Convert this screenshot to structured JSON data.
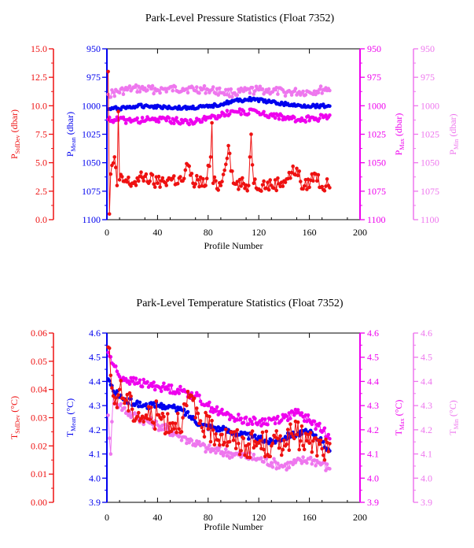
{
  "colors": {
    "stddev": "#ee1111",
    "mean": "#0000ee",
    "max": "#ee00ee",
    "min": "#ee77ee",
    "frame": "#000000"
  },
  "chart_data": [
    {
      "type": "line",
      "title": "Park-Level Pressure Statistics (Float 7352)",
      "xlabel": "Profile Number",
      "xlim": [
        0,
        200
      ],
      "xticks": [
        "0",
        "40",
        "80",
        "120",
        "160",
        "200"
      ],
      "axes": [
        {
          "key": "stddev",
          "label_main": "P",
          "label_sub": "StdDev",
          "label_unit": " (dbar)",
          "ticks": [
            "0.0",
            "2.5",
            "5.0",
            "7.5",
            "10.0",
            "12.5",
            "15.0"
          ],
          "lim": [
            0,
            15
          ],
          "inverted": false
        },
        {
          "key": "mean",
          "label_main": "P",
          "label_sub": "Mean",
          "label_unit": " (dbar)",
          "ticks": [
            "950",
            "975",
            "1000",
            "1025",
            "1050",
            "1075",
            "1100"
          ],
          "lim": [
            950,
            1100
          ],
          "inverted": true
        },
        {
          "key": "max",
          "label_main": "P",
          "label_sub": "Max",
          "label_unit": " (dbar)",
          "ticks": [
            "950",
            "975",
            "1000",
            "1025",
            "1050",
            "1075",
            "1100"
          ],
          "lim": [
            950,
            1100
          ],
          "inverted": true
        },
        {
          "key": "min",
          "label_main": "P",
          "label_sub": "Min",
          "label_unit": " (dbar)",
          "ticks": [
            "950",
            "975",
            "1000",
            "1025",
            "1050",
            "1075",
            "1100"
          ],
          "lim": [
            950,
            1100
          ],
          "inverted": true
        }
      ],
      "series": [
        {
          "axis": "stddev",
          "anchors": [
            [
              1,
              13
            ],
            [
              2,
              0.5
            ],
            [
              3,
              4
            ],
            [
              6,
              5.5
            ],
            [
              8,
              3
            ],
            [
              9,
              9.5
            ],
            [
              10,
              3.5
            ],
            [
              20,
              3.2
            ],
            [
              30,
              3.8
            ],
            [
              40,
              3.2
            ],
            [
              50,
              3.6
            ],
            [
              60,
              3.4
            ],
            [
              64,
              4.8
            ],
            [
              68,
              3.2
            ],
            [
              72,
              3.5
            ],
            [
              78,
              3.0
            ],
            [
              82,
              5.5
            ],
            [
              83,
              8.5
            ],
            [
              84,
              3.2
            ],
            [
              90,
              3.0
            ],
            [
              96,
              6.5
            ],
            [
              100,
              3.2
            ],
            [
              112,
              3.0
            ],
            [
              114,
              7.5
            ],
            [
              116,
              3.2
            ],
            [
              130,
              3.0
            ],
            [
              140,
              3.4
            ],
            [
              150,
              4.5
            ],
            [
              155,
              2.7
            ],
            [
              165,
              4.0
            ],
            [
              170,
              2.9
            ],
            [
              175,
              3.0
            ]
          ],
          "amp": 0.6
        },
        {
          "axis": "mean",
          "anchors": [
            [
              1,
              1003
            ],
            [
              30,
              1000
            ],
            [
              60,
              1002
            ],
            [
              80,
              1001
            ],
            [
              100,
              996
            ],
            [
              115,
              994
            ],
            [
              130,
              997
            ],
            [
              150,
              1000
            ],
            [
              175,
              1000
            ]
          ],
          "amp": 1.5
        },
        {
          "axis": "max",
          "anchors": [
            [
              1,
              1012
            ],
            [
              20,
              1013
            ],
            [
              40,
              1012
            ],
            [
              70,
              1014
            ],
            [
              100,
              1005
            ],
            [
              120,
              1006
            ],
            [
              140,
              1010
            ],
            [
              150,
              1013
            ],
            [
              165,
              1011
            ],
            [
              175,
              1010
            ]
          ],
          "amp": 2.8
        },
        {
          "axis": "min",
          "anchors": [
            [
              1,
              990
            ],
            [
              20,
              985
            ],
            [
              40,
              986
            ],
            [
              60,
              985
            ],
            [
              80,
              986
            ],
            [
              100,
              989
            ],
            [
              120,
              986
            ],
            [
              140,
              988
            ],
            [
              160,
              988
            ],
            [
              175,
              985
            ]
          ],
          "amp": 3.5
        }
      ]
    },
    {
      "type": "line",
      "title": "Park-Level Temperature Statistics (Float 7352)",
      "xlabel": "Profile Number",
      "xlim": [
        0,
        200
      ],
      "xticks": [
        "0",
        "40",
        "80",
        "120",
        "160",
        "200"
      ],
      "axes": [
        {
          "key": "stddev",
          "label_main": "T",
          "label_sub": "StdDev",
          "label_unit": " (°C)",
          "ticks": [
            "0.00",
            "0.01",
            "0.02",
            "0.03",
            "0.04",
            "0.05",
            "0.06"
          ],
          "lim": [
            0,
            0.06
          ],
          "inverted": false
        },
        {
          "key": "mean",
          "label_main": "T",
          "label_sub": "Mean",
          "label_unit": " (°C)",
          "ticks": [
            "3.9",
            "4.0",
            "4.1",
            "4.2",
            "4.3",
            "4.4",
            "4.5",
            "4.6"
          ],
          "lim": [
            3.9,
            4.6
          ],
          "inverted": false
        },
        {
          "key": "max",
          "label_main": "T",
          "label_sub": "Max",
          "label_unit": " (°C)",
          "ticks": [
            "3.9",
            "4.0",
            "4.1",
            "4.2",
            "4.3",
            "4.4",
            "4.5",
            "4.6"
          ],
          "lim": [
            3.9,
            4.6
          ],
          "inverted": false
        },
        {
          "key": "min",
          "label_main": "T",
          "label_sub": "Min",
          "label_unit": " (°C)",
          "ticks": [
            "3.9",
            "4.0",
            "4.1",
            "4.2",
            "4.3",
            "4.4",
            "4.5",
            "4.6"
          ],
          "lim": [
            3.9,
            4.6
          ],
          "inverted": false
        }
      ],
      "series": [
        {
          "axis": "stddev",
          "anchors": [
            [
              1,
              0.055
            ],
            [
              3,
              0.045
            ],
            [
              6,
              0.035
            ],
            [
              10,
              0.04
            ],
            [
              20,
              0.033
            ],
            [
              30,
              0.03
            ],
            [
              40,
              0.031
            ],
            [
              50,
              0.028
            ],
            [
              60,
              0.03
            ],
            [
              66,
              0.038
            ],
            [
              70,
              0.03
            ],
            [
              80,
              0.026
            ],
            [
              90,
              0.024
            ],
            [
              100,
              0.022
            ],
            [
              110,
              0.02
            ],
            [
              120,
              0.021
            ],
            [
              130,
              0.02
            ],
            [
              140,
              0.022
            ],
            [
              150,
              0.024
            ],
            [
              160,
              0.021
            ],
            [
              170,
              0.019
            ],
            [
              175,
              0.018
            ]
          ],
          "amp": 0.005
        },
        {
          "axis": "mean",
          "anchors": [
            [
              1,
              4.41
            ],
            [
              5,
              4.36
            ],
            [
              15,
              4.32
            ],
            [
              30,
              4.3
            ],
            [
              45,
              4.3
            ],
            [
              60,
              4.28
            ],
            [
              75,
              4.22
            ],
            [
              85,
              4.21
            ],
            [
              100,
              4.19
            ],
            [
              115,
              4.17
            ],
            [
              130,
              4.15
            ],
            [
              145,
              4.18
            ],
            [
              160,
              4.19
            ],
            [
              170,
              4.15
            ],
            [
              175,
              4.12
            ]
          ],
          "amp": 0.013
        },
        {
          "axis": "max",
          "anchors": [
            [
              1,
              4.52
            ],
            [
              5,
              4.47
            ],
            [
              10,
              4.42
            ],
            [
              20,
              4.4
            ],
            [
              40,
              4.38
            ],
            [
              60,
              4.36
            ],
            [
              70,
              4.34
            ],
            [
              80,
              4.3
            ],
            [
              90,
              4.27
            ],
            [
              100,
              4.25
            ],
            [
              120,
              4.23
            ],
            [
              140,
              4.25
            ],
            [
              150,
              4.27
            ],
            [
              160,
              4.24
            ],
            [
              175,
              4.18
            ]
          ],
          "amp": 0.018
        },
        {
          "axis": "min",
          "anchors": [
            [
              1,
              4.26
            ],
            [
              3,
              4.1
            ],
            [
              5,
              4.34
            ],
            [
              10,
              4.3
            ],
            [
              20,
              4.26
            ],
            [
              40,
              4.22
            ],
            [
              60,
              4.17
            ],
            [
              80,
              4.12
            ],
            [
              100,
              4.1
            ],
            [
              120,
              4.08
            ],
            [
              140,
              4.05
            ],
            [
              160,
              4.08
            ],
            [
              170,
              4.06
            ],
            [
              175,
              4.04
            ]
          ],
          "amp": 0.02
        }
      ]
    }
  ]
}
